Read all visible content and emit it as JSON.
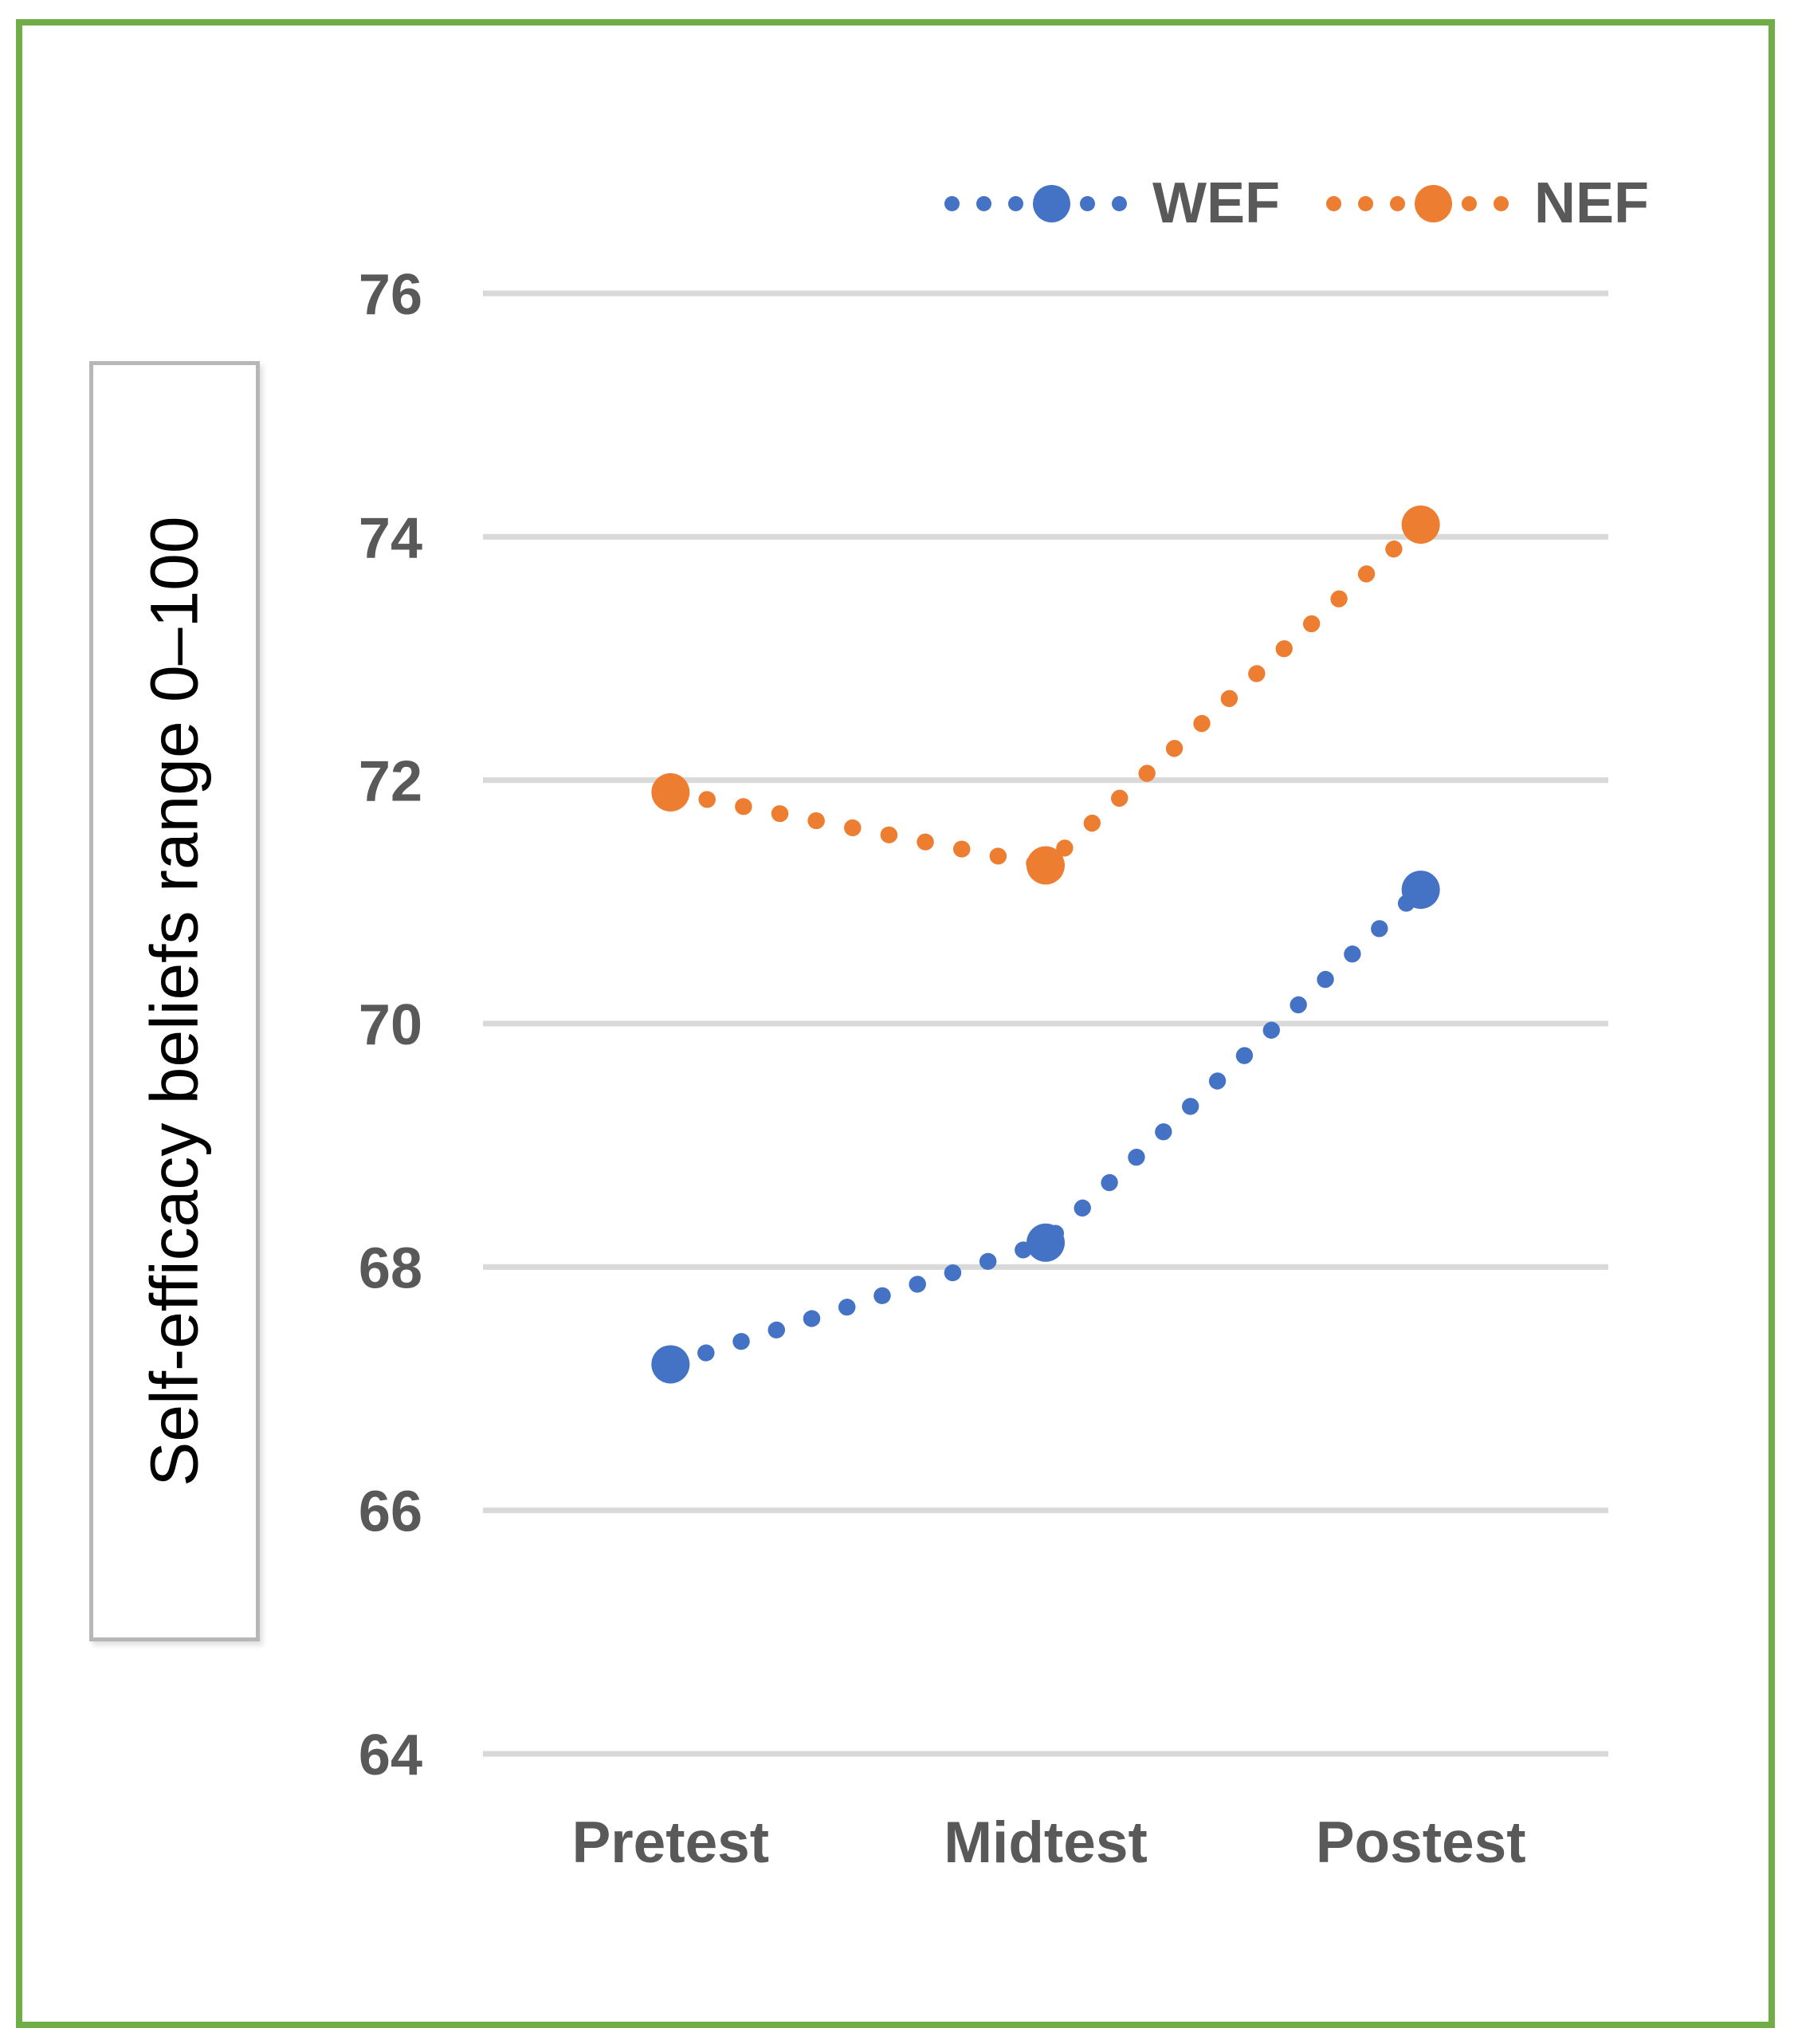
{
  "figure": {
    "background": "#FFFFFF",
    "border_color": "#70AD47"
  },
  "chart_data": {
    "type": "line",
    "title": "",
    "categories": [
      "Pretest",
      "Midtest",
      "Postest"
    ],
    "series": [
      {
        "name": "WEF",
        "color": "#4472C4",
        "style": "dotted",
        "marker": "circle",
        "values": [
          67.2,
          68.2,
          71.1
        ]
      },
      {
        "name": "NEF",
        "color": "#ED7D31",
        "style": "dotted",
        "marker": "circle",
        "values": [
          71.9,
          71.3,
          74.1
        ]
      }
    ],
    "xlabel": "",
    "ylabel": "Self-efficacy beliefs range 0–100",
    "ylim": [
      64,
      76
    ],
    "ytick_step": 2,
    "yticks": [
      76,
      74,
      72,
      70,
      68,
      66,
      64
    ],
    "grid": "horizontal",
    "gridline_color": "#D9D9D9",
    "axis_text_color": "#595959",
    "ylabel_text_color": "#000000",
    "legend_position": "top-right"
  }
}
